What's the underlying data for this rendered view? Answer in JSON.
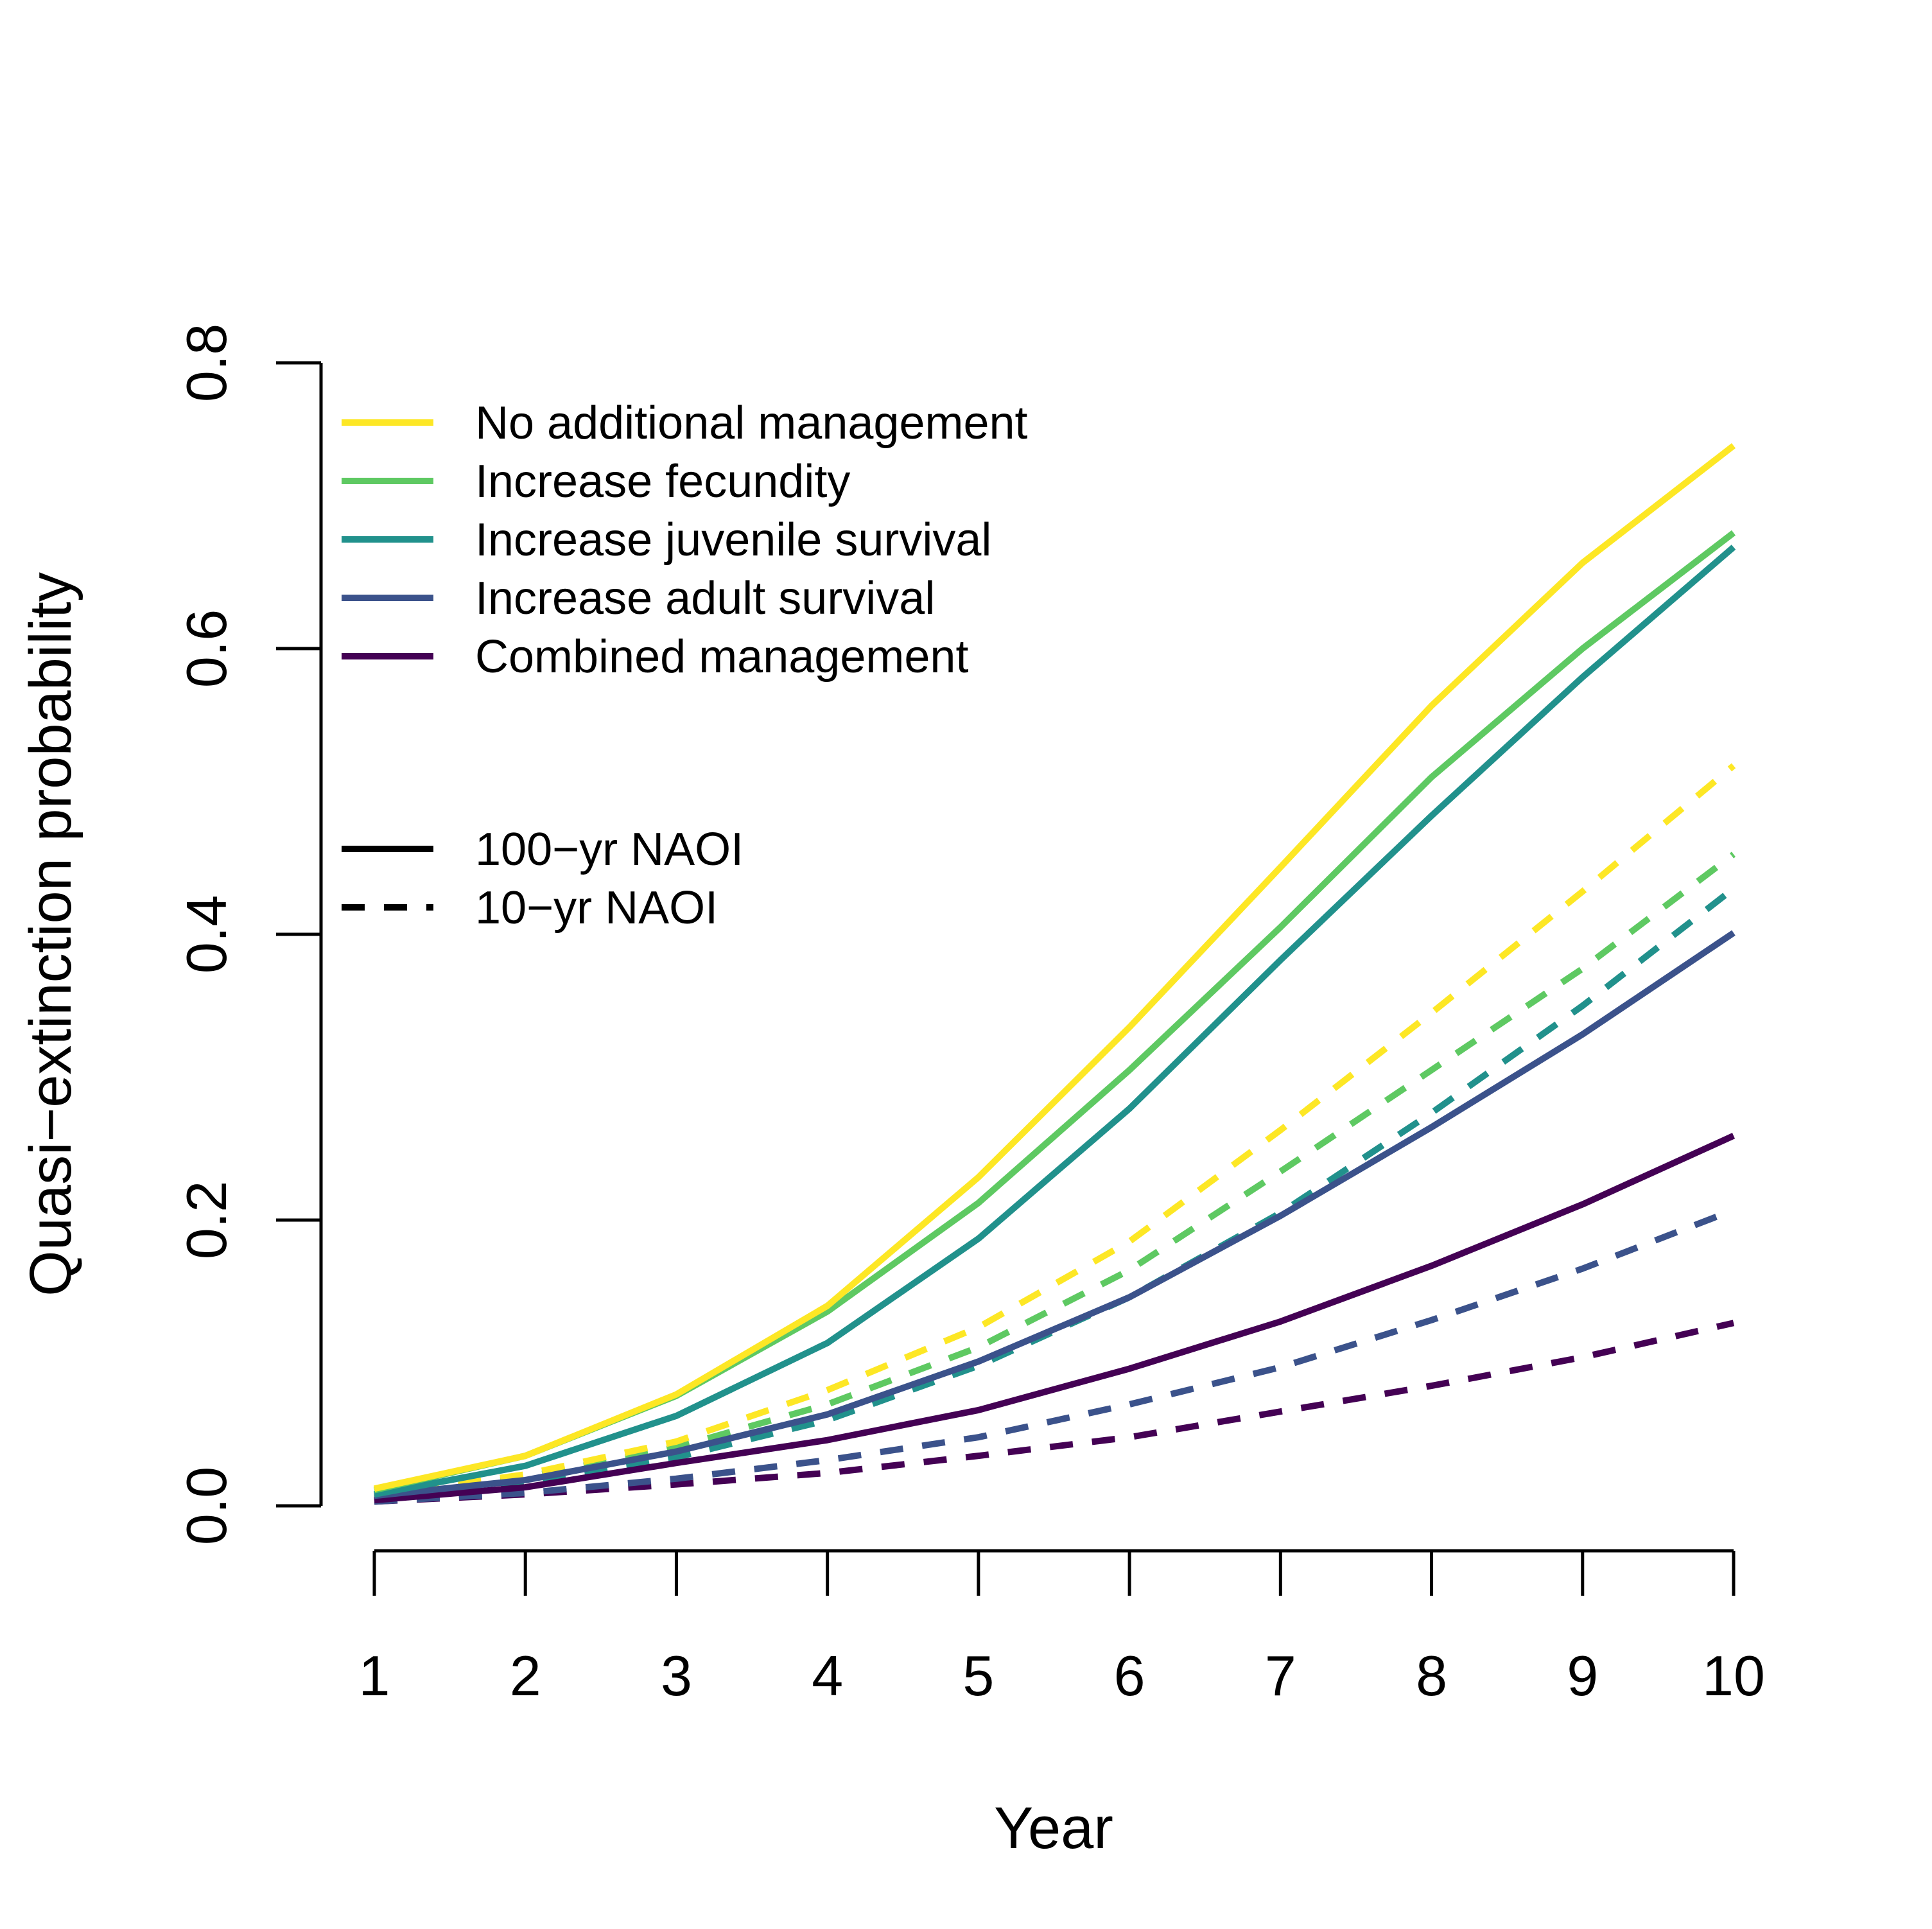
{
  "chart_data": {
    "type": "line",
    "xlabel": "Year",
    "ylabel": "Quasi−extinction probability",
    "x": [
      1,
      2,
      3,
      4,
      5,
      6,
      7,
      8,
      9,
      10
    ],
    "xticks": [
      "1",
      "2",
      "3",
      "4",
      "5",
      "6",
      "7",
      "8",
      "9",
      "10"
    ],
    "xlim": [
      1,
      10
    ],
    "ylim": [
      0,
      0.8
    ],
    "yticks": [
      "0.0",
      "0.2",
      "0.4",
      "0.6",
      "0.8"
    ],
    "grid": false,
    "legend_position": "top-left",
    "series": [
      {
        "name": "No additional management",
        "scenario": "100−yr NAOI",
        "color": "#FDE725",
        "dash": "solid",
        "values": [
          0.012,
          0.035,
          0.078,
          0.14,
          0.23,
          0.335,
          0.447,
          0.56,
          0.66,
          0.742
        ]
      },
      {
        "name": "Increase fecundity",
        "scenario": "100−yr NAOI",
        "color": "#5EC962",
        "dash": "solid",
        "values": [
          0.011,
          0.035,
          0.077,
          0.136,
          0.212,
          0.305,
          0.405,
          0.51,
          0.6,
          0.681
        ]
      },
      {
        "name": "Increase juvenile survival",
        "scenario": "100−yr NAOI",
        "color": "#21918C",
        "dash": "solid",
        "values": [
          0.008,
          0.028,
          0.063,
          0.114,
          0.187,
          0.278,
          0.382,
          0.483,
          0.58,
          0.671
        ]
      },
      {
        "name": "Increase adult survival",
        "scenario": "100−yr NAOI",
        "color": "#3B528B",
        "dash": "solid",
        "values": [
          0.007,
          0.018,
          0.038,
          0.064,
          0.101,
          0.146,
          0.203,
          0.265,
          0.33,
          0.401
        ]
      },
      {
        "name": "Combined management",
        "scenario": "100−yr NAOI",
        "color": "#440154",
        "dash": "solid",
        "values": [
          0.004,
          0.013,
          0.03,
          0.046,
          0.067,
          0.096,
          0.129,
          0.168,
          0.211,
          0.259
        ]
      },
      {
        "name": "No additional management",
        "scenario": "10−yr NAOI",
        "color": "#FDE725",
        "dash": "dashed",
        "values": [
          0.007,
          0.022,
          0.045,
          0.081,
          0.125,
          0.185,
          0.263,
          0.345,
          0.43,
          0.518
        ]
      },
      {
        "name": "Increase fecundity",
        "scenario": "10−yr NAOI",
        "color": "#5EC962",
        "dash": "dashed",
        "values": [
          0.006,
          0.02,
          0.041,
          0.071,
          0.111,
          0.165,
          0.234,
          0.305,
          0.376,
          0.456
        ]
      },
      {
        "name": "Increase juvenile survival",
        "scenario": "10−yr NAOI",
        "color": "#21918C",
        "dash": "dashed",
        "values": [
          0.005,
          0.016,
          0.034,
          0.06,
          0.098,
          0.146,
          0.205,
          0.275,
          0.35,
          0.432
        ]
      },
      {
        "name": "Increase adult survival",
        "scenario": "10−yr NAOI",
        "color": "#3B528B",
        "dash": "dashed",
        "values": [
          0.003,
          0.009,
          0.019,
          0.032,
          0.048,
          0.071,
          0.097,
          0.13,
          0.166,
          0.207
        ]
      },
      {
        "name": "Combined management",
        "scenario": "10−yr NAOI",
        "color": "#440154",
        "dash": "dashed",
        "values": [
          0.003,
          0.008,
          0.015,
          0.023,
          0.035,
          0.048,
          0.066,
          0.084,
          0.104,
          0.128
        ]
      }
    ],
    "legend": {
      "colors": [
        {
          "label": "No additional management",
          "color": "#FDE725"
        },
        {
          "label": "Increase fecundity",
          "color": "#5EC962"
        },
        {
          "label": "Increase juvenile survival",
          "color": "#21918C"
        },
        {
          "label": "Increase adult survival",
          "color": "#3B528B"
        },
        {
          "label": "Combined management",
          "color": "#440154"
        }
      ],
      "styles": [
        {
          "label": "100−yr NAOI",
          "dash": "solid"
        },
        {
          "label": "10−yr NAOI",
          "dash": "dashed"
        }
      ]
    }
  }
}
